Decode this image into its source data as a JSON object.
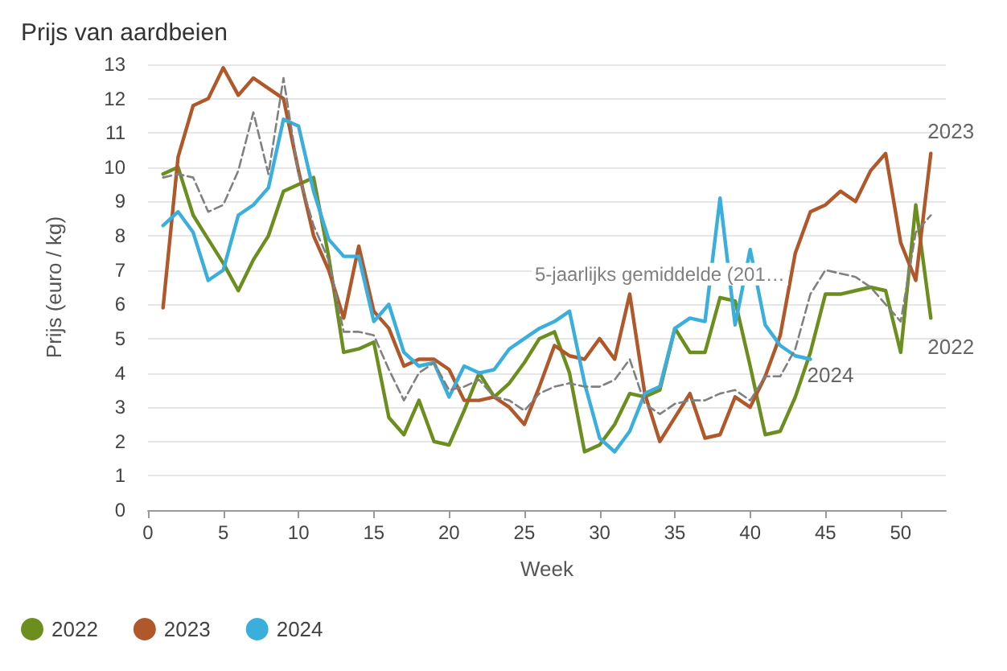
{
  "chart_data": {
    "type": "line",
    "title": "Prijs van aardbeien",
    "xlabel": "Week",
    "ylabel": "Prijs (euro / kg)",
    "x": [
      1,
      2,
      3,
      4,
      5,
      6,
      7,
      8,
      9,
      10,
      11,
      12,
      13,
      14,
      15,
      16,
      17,
      18,
      19,
      20,
      21,
      22,
      23,
      24,
      25,
      26,
      27,
      28,
      29,
      30,
      31,
      32,
      33,
      34,
      35,
      36,
      37,
      38,
      39,
      40,
      41,
      42,
      43,
      44,
      45,
      46,
      47,
      48,
      49,
      50,
      51,
      52
    ],
    "xlim": [
      0,
      53
    ],
    "xticks": [
      0,
      5,
      10,
      15,
      20,
      25,
      30,
      35,
      40,
      45,
      50
    ],
    "ylim": [
      0,
      13
    ],
    "yticks": [
      0,
      1,
      2,
      3,
      4,
      5,
      6,
      7,
      8,
      9,
      10,
      11,
      12,
      13
    ],
    "grid": "y",
    "legend": "bottom left",
    "marker": "none",
    "series": [
      {
        "name": "2022",
        "color": "#6b8e1e",
        "line_style": "solid",
        "values": [
          9.8,
          10.0,
          8.6,
          7.9,
          7.2,
          6.4,
          7.3,
          8.0,
          9.3,
          9.5,
          9.7,
          7.4,
          4.6,
          4.7,
          4.9,
          2.7,
          2.2,
          3.2,
          2.0,
          1.9,
          2.9,
          4.0,
          3.3,
          3.7,
          4.3,
          5.0,
          5.2,
          4.0,
          1.7,
          1.9,
          2.5,
          3.4,
          3.3,
          3.5,
          5.3,
          4.6,
          4.6,
          6.2,
          6.1,
          4.2,
          2.2,
          2.3,
          3.3,
          4.6,
          6.3,
          6.3,
          6.4,
          6.5,
          6.4,
          4.6,
          8.9,
          5.6
        ]
      },
      {
        "name": "2023",
        "color": "#b0582a",
        "line_style": "solid",
        "values": [
          5.9,
          10.3,
          11.8,
          12.0,
          12.9,
          12.1,
          12.6,
          12.3,
          12.0,
          9.9,
          8.0,
          7.0,
          5.6,
          7.7,
          5.8,
          5.3,
          4.2,
          4.4,
          4.4,
          4.1,
          3.2,
          3.2,
          3.3,
          3.0,
          2.5,
          3.6,
          4.8,
          4.5,
          4.4,
          5.0,
          4.4,
          6.3,
          3.4,
          2.0,
          2.7,
          3.4,
          2.1,
          2.2,
          3.3,
          3.0,
          3.9,
          5.1,
          7.5,
          8.7,
          8.9,
          9.3,
          9.0,
          9.9,
          10.4,
          7.8,
          6.7,
          10.4
        ]
      },
      {
        "name": "2024",
        "color": "#3aaedc",
        "line_style": "solid",
        "values": [
          8.3,
          8.7,
          8.1,
          6.7,
          7.0,
          8.6,
          8.9,
          9.4,
          11.4,
          11.2,
          9.3,
          7.9,
          7.4,
          7.4,
          5.5,
          6.0,
          4.6,
          4.2,
          4.3,
          3.3,
          4.2,
          4.0,
          4.1,
          4.7,
          5.0,
          5.3,
          5.5,
          5.8,
          3.7,
          2.1,
          1.7,
          2.3,
          3.4,
          3.6,
          5.3,
          5.6,
          5.5,
          9.1,
          5.4,
          7.6,
          5.4,
          4.8,
          4.5,
          4.4,
          null,
          null,
          null,
          null,
          null,
          null,
          null,
          null
        ]
      },
      {
        "name": "5-jaarlijks gemiddelde (201…",
        "color": "#808080",
        "line_style": "dashed",
        "values": [
          9.7,
          9.8,
          9.7,
          8.7,
          8.9,
          9.9,
          11.6,
          9.8,
          12.6,
          9.8,
          8.3,
          7.3,
          5.2,
          5.2,
          5.1,
          4.1,
          3.2,
          4.0,
          4.3,
          3.5,
          3.6,
          3.8,
          3.3,
          3.2,
          2.9,
          3.4,
          3.6,
          3.7,
          3.6,
          3.6,
          3.8,
          4.4,
          3.1,
          2.8,
          3.1,
          3.2,
          3.2,
          3.4,
          3.5,
          3.2,
          3.9,
          3.9,
          4.7,
          6.3,
          7.0,
          6.9,
          6.8,
          6.5,
          6.0,
          5.5,
          8.1,
          8.6
        ]
      }
    ]
  }
}
